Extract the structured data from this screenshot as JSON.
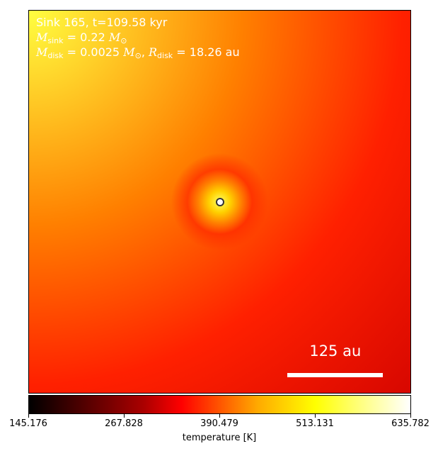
{
  "chart_data": {
    "type": "heatmap",
    "annotations": {
      "sink_line": "Sink 165, t=109.58 kyr",
      "m_sink_value": "= 0.22",
      "m_disk_value": "= 0.0025",
      "r_disk_value": "= 18.26 au"
    },
    "sink_position": [
      0.5,
      0.5
    ],
    "scale_bar": {
      "label": "125 au",
      "fraction": 0.25,
      "center_x": 0.8,
      "y": 0.95
    },
    "colormap": "hot",
    "colorbar": {
      "label": "temperature [K]",
      "min": 145.176,
      "max": 635.782,
      "ticks": [
        "145.176",
        "267.828",
        "390.479",
        "513.131",
        "635.782"
      ]
    }
  }
}
